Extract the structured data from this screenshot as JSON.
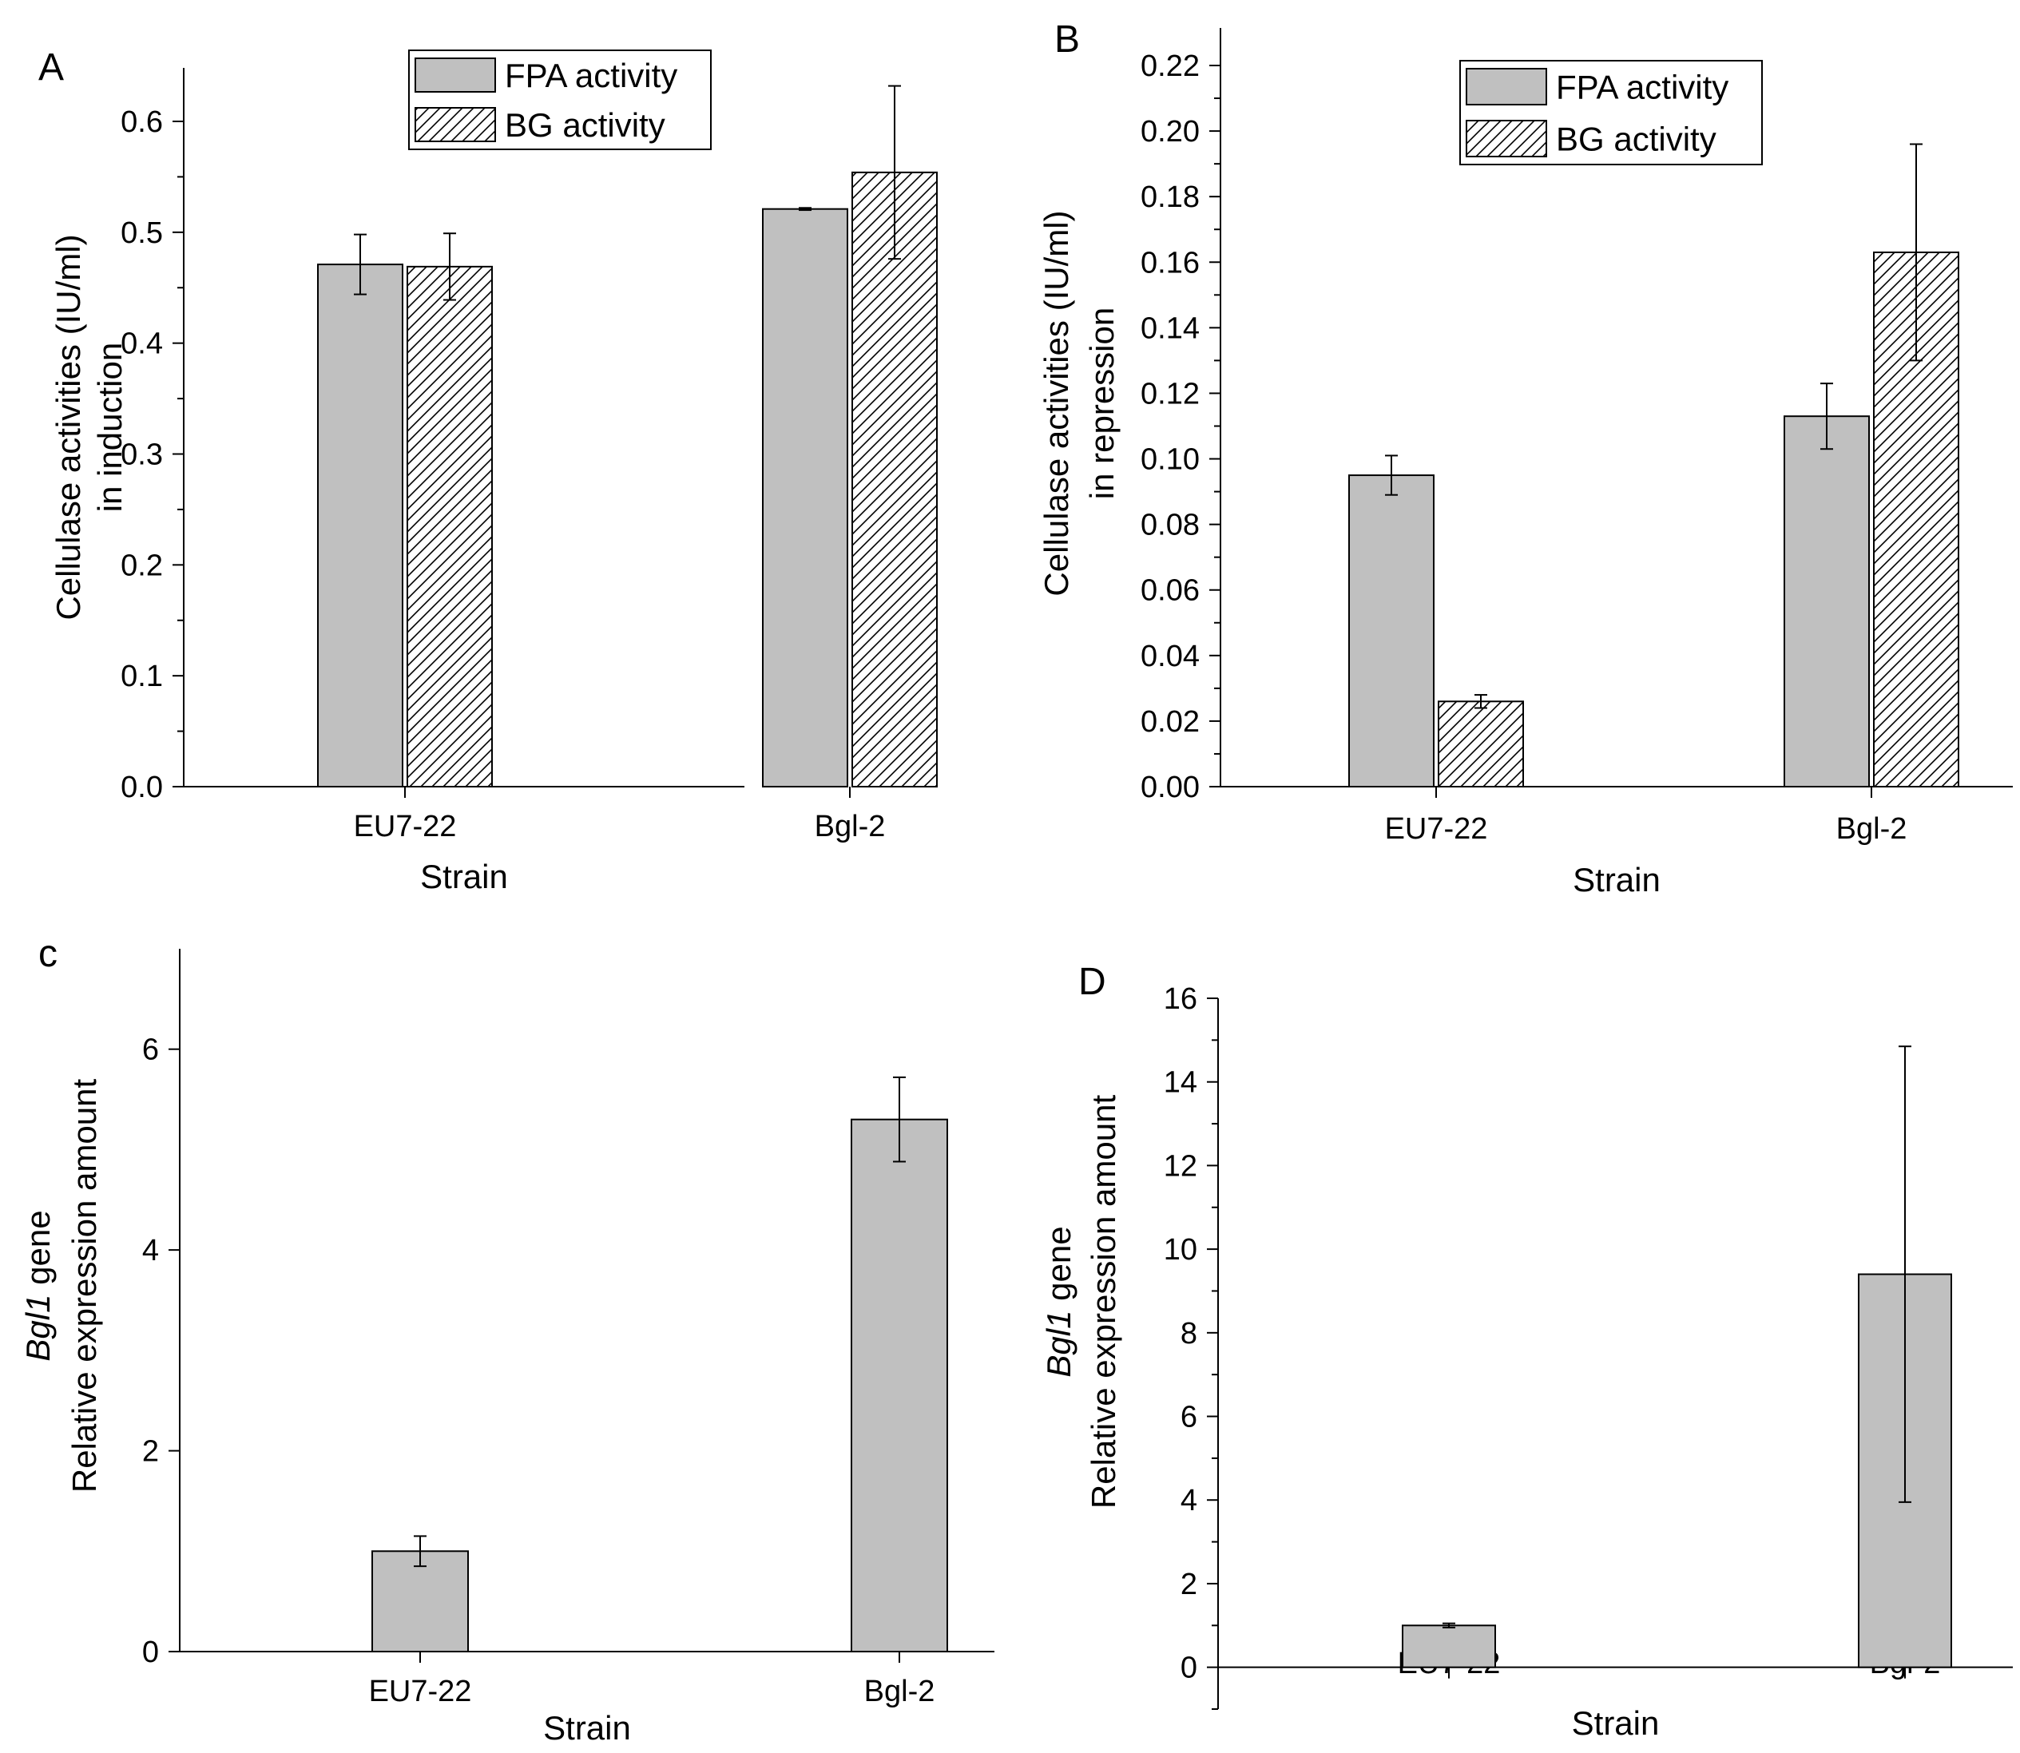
{
  "colors": {
    "bar_fill": "#c0c0c0",
    "bar_stroke": "#000000",
    "axis": "#000000",
    "hatch": "#000000"
  },
  "chart_data": [
    {
      "panel_label": "A",
      "type": "bar",
      "categories": [
        "EU7-22",
        "Bgl-2"
      ],
      "series": [
        {
          "name": "FPA activity",
          "pattern": "solid",
          "values": [
            0.471,
            0.521
          ],
          "errors": [
            0.027,
            0.001
          ]
        },
        {
          "name": "BG activity",
          "pattern": "hatch",
          "values": [
            0.469,
            0.554
          ],
          "errors": [
            0.03,
            0.078
          ]
        }
      ],
      "xlabel": "Strain",
      "ylabel_lines": [
        "Cellulase activities (IU/ml)",
        "in induction"
      ],
      "ylim": [
        0,
        0.6
      ],
      "yticks": [
        "0.0",
        "0.1",
        "0.2",
        "0.3",
        "0.4",
        "0.5",
        "0.6"
      ],
      "ytick_values": [
        0,
        0.1,
        0.2,
        0.3,
        0.4,
        0.5,
        0.6
      ],
      "legend": "top-center"
    },
    {
      "panel_label": "B",
      "type": "bar",
      "categories": [
        "EU7-22",
        "Bgl-2"
      ],
      "series": [
        {
          "name": "FPA activity",
          "pattern": "solid",
          "values": [
            0.095,
            0.113
          ],
          "errors": [
            0.006,
            0.01
          ]
        },
        {
          "name": "BG activity",
          "pattern": "hatch",
          "values": [
            0.026,
            0.163
          ],
          "errors": [
            0.002,
            0.033
          ]
        }
      ],
      "xlabel": "Strain",
      "ylabel_lines": [
        "Cellulase activities (IU/ml)",
        "in repression"
      ],
      "ylim": [
        0,
        0.22
      ],
      "yticks": [
        "0.00",
        "0.02",
        "0.04",
        "0.06",
        "0.08",
        "0.10",
        "0.12",
        "0.14",
        "0.16",
        "0.18",
        "0.20",
        "0.22"
      ],
      "ytick_values": [
        0,
        0.02,
        0.04,
        0.06,
        0.08,
        0.1,
        0.12,
        0.14,
        0.16,
        0.18,
        0.2,
        0.22
      ],
      "legend": "top-center"
    },
    {
      "panel_label": "c",
      "type": "bar",
      "categories": [
        "EU7-22",
        "Bgl-2"
      ],
      "series": [
        {
          "pattern": "solid",
          "values": [
            1.0,
            5.3
          ],
          "errors": [
            0.15,
            0.42
          ]
        }
      ],
      "xlabel": "Strain",
      "ylabel_italic": "Bgl1",
      "ylabel_rest": " gene",
      "ylabel_line2": "Relative expression amount",
      "ylim": [
        0,
        7
      ],
      "yticks": [
        "0",
        "2",
        "4",
        "6"
      ],
      "ytick_values": [
        0,
        2,
        4,
        6
      ]
    },
    {
      "panel_label": "D",
      "type": "bar",
      "categories": [
        "EU7-22",
        "Bgl-2"
      ],
      "series": [
        {
          "pattern": "solid",
          "values": [
            1.0,
            9.4
          ],
          "errors": [
            0.05,
            5.45
          ]
        }
      ],
      "xlabel": "Strain",
      "ylabel_italic": "Bgl1",
      "ylabel_rest": " gene",
      "ylabel_line2": "Relative expression amount",
      "ylim": [
        -1,
        16
      ],
      "yticks": [
        "0",
        "2",
        "4",
        "6",
        "8",
        "10",
        "12",
        "14",
        "16"
      ],
      "ytick_values": [
        0,
        2,
        4,
        6,
        8,
        10,
        12,
        14,
        16
      ]
    }
  ]
}
